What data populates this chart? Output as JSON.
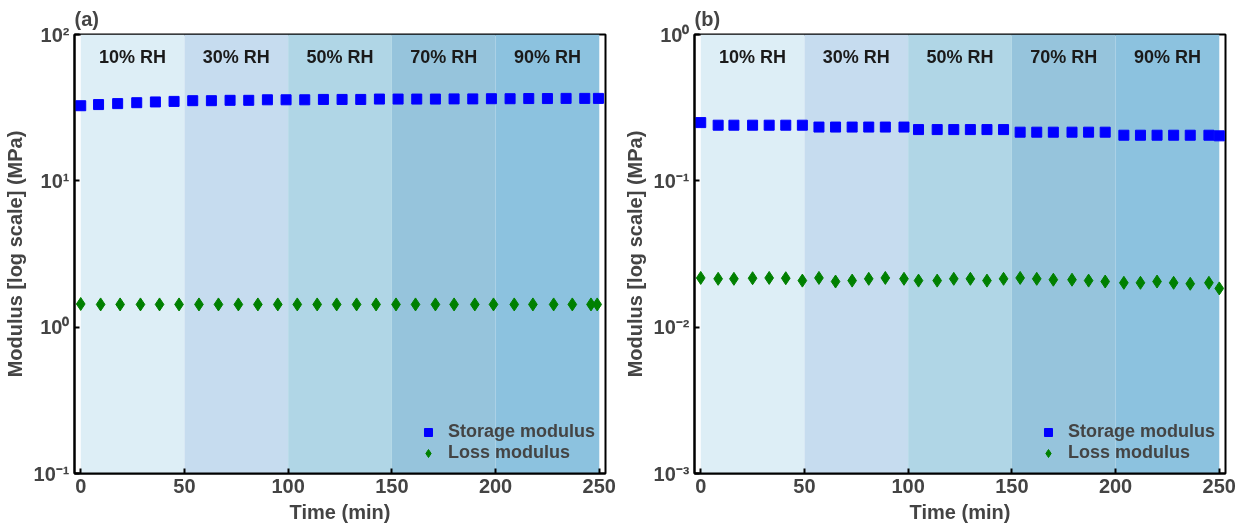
{
  "chart_data": [
    {
      "type": "scatter",
      "title": "(a)",
      "xlabel": "Time (min)",
      "ylabel": "Modulus [log scale] (MPa)",
      "log": "y",
      "grid": false,
      "legend": "bottom right",
      "xlim": [
        -3,
        253
      ],
      "xticks": [
        0,
        50,
        100,
        150,
        200,
        250
      ],
      "ylim": [
        0.1,
        100
      ],
      "yticks": [
        {
          "value": 0.1,
          "label": "10⁻¹"
        },
        {
          "value": 1,
          "label": "10⁰"
        },
        {
          "value": 10,
          "label": "10¹"
        },
        {
          "value": 100,
          "label": "10²"
        }
      ],
      "bands": [
        {
          "axis": "x",
          "from": 0,
          "to": 50,
          "label": "10% RH",
          "color": "#ddeef6"
        },
        {
          "axis": "x",
          "from": 50,
          "to": 100,
          "label": "30% RH",
          "color": "#c6dcef"
        },
        {
          "axis": "x",
          "from": 100,
          "to": 150,
          "label": "50% RH",
          "color": "#b0d6e6"
        },
        {
          "axis": "x",
          "from": 150,
          "to": 200,
          "label": "70% RH",
          "color": "#96c4dc"
        },
        {
          "axis": "x",
          "from": 200,
          "to": 250,
          "label": "90% RH",
          "color": "#8cc2df"
        }
      ],
      "series": [
        {
          "name": "Storage modulus",
          "color": "#0000ff",
          "marker": "square",
          "x": [
            0,
            8.6,
            17.8,
            27,
            36,
            45,
            54,
            63,
            72,
            81,
            90,
            99,
            108,
            117,
            126,
            135,
            144,
            153,
            162,
            171,
            180,
            189,
            198,
            207,
            216,
            225,
            234,
            243,
            249.6
          ],
          "values": [
            32.6,
            33.2,
            33.7,
            34.2,
            34.6,
            34.9,
            35.3,
            35.3,
            35.5,
            35.5,
            35.8,
            35.8,
            35.8,
            36,
            36,
            36,
            36.2,
            36.2,
            36.2,
            36.2,
            36.3,
            36.3,
            36.4,
            36.4,
            36.5,
            36.5,
            36.6,
            36.6,
            36.6
          ]
        },
        {
          "name": "Loss modulus",
          "color": "#008000",
          "marker": "diamond",
          "x": [
            0,
            9.6,
            19,
            28.8,
            38,
            47.4,
            57,
            66.4,
            76,
            85.4,
            95,
            104.4,
            114,
            123.4,
            133,
            142.4,
            152,
            161.4,
            171,
            180,
            190,
            199,
            209,
            218,
            228,
            237,
            246,
            249
          ],
          "values": [
            1.44,
            1.43,
            1.43,
            1.43,
            1.43,
            1.43,
            1.43,
            1.43,
            1.43,
            1.43,
            1.43,
            1.43,
            1.43,
            1.43,
            1.43,
            1.43,
            1.43,
            1.43,
            1.43,
            1.43,
            1.43,
            1.43,
            1.43,
            1.43,
            1.43,
            1.43,
            1.43,
            1.43
          ]
        }
      ]
    },
    {
      "type": "scatter",
      "title": "(b)",
      "xlabel": "Time (min)",
      "ylabel": "Modulus [log scale] (MPa)",
      "log": "y",
      "grid": false,
      "legend": "bottom right",
      "xlim": [
        -3,
        253
      ],
      "xticks": [
        0,
        50,
        100,
        150,
        200,
        250
      ],
      "ylim": [
        0.001,
        1
      ],
      "yticks": [
        {
          "value": 0.001,
          "label": "10⁻³"
        },
        {
          "value": 0.01,
          "label": "10⁻²"
        },
        {
          "value": 0.1,
          "label": "10⁻¹"
        },
        {
          "value": 1,
          "label": "10⁰"
        }
      ],
      "bands": [
        {
          "axis": "x",
          "from": 0,
          "to": 50,
          "label": "10% RH",
          "color": "#ddeef6"
        },
        {
          "axis": "x",
          "from": 50,
          "to": 100,
          "label": "30% RH",
          "color": "#c6dcef"
        },
        {
          "axis": "x",
          "from": 100,
          "to": 150,
          "label": "50% RH",
          "color": "#b0d6e6"
        },
        {
          "axis": "x",
          "from": 150,
          "to": 200,
          "label": "70% RH",
          "color": "#96c4dc"
        },
        {
          "axis": "x",
          "from": 200,
          "to": 250,
          "label": "90% RH",
          "color": "#8cc2df"
        }
      ],
      "series": [
        {
          "name": "Storage modulus",
          "color": "#0000ff",
          "marker": "square",
          "x": [
            0,
            8.4,
            16,
            25,
            33,
            41,
            49,
            57,
            65,
            73,
            81,
            89,
            98,
            105,
            114,
            122,
            130,
            138,
            146,
            154,
            162,
            170,
            179,
            187,
            195,
            204,
            212,
            220,
            228,
            236,
            245,
            250
          ],
          "values": [
            0.25,
            0.24,
            0.24,
            0.24,
            0.24,
            0.24,
            0.24,
            0.233,
            0.233,
            0.233,
            0.233,
            0.233,
            0.233,
            0.224,
            0.224,
            0.224,
            0.224,
            0.224,
            0.224,
            0.215,
            0.215,
            0.215,
            0.215,
            0.215,
            0.215,
            0.205,
            0.205,
            0.205,
            0.205,
            0.205,
            0.205,
            0.203
          ]
        },
        {
          "name": "Loss modulus",
          "color": "#008000",
          "marker": "diamond",
          "x": [
            0,
            8.4,
            16,
            25,
            33,
            41,
            49,
            57,
            65,
            73,
            81,
            89,
            98,
            105,
            114,
            122,
            130,
            138,
            146,
            154,
            162,
            170,
            179,
            187,
            195,
            204,
            212,
            220,
            228,
            236,
            245,
            250
          ],
          "values": [
            0.0217,
            0.0214,
            0.0214,
            0.0216,
            0.0217,
            0.0216,
            0.0208,
            0.0217,
            0.0205,
            0.0208,
            0.0214,
            0.0217,
            0.0214,
            0.0208,
            0.0208,
            0.0214,
            0.0214,
            0.0208,
            0.0214,
            0.0217,
            0.0214,
            0.0211,
            0.0211,
            0.0208,
            0.0205,
            0.0201,
            0.0201,
            0.0205,
            0.0201,
            0.0198,
            0.0201,
            0.0184
          ]
        }
      ]
    }
  ]
}
